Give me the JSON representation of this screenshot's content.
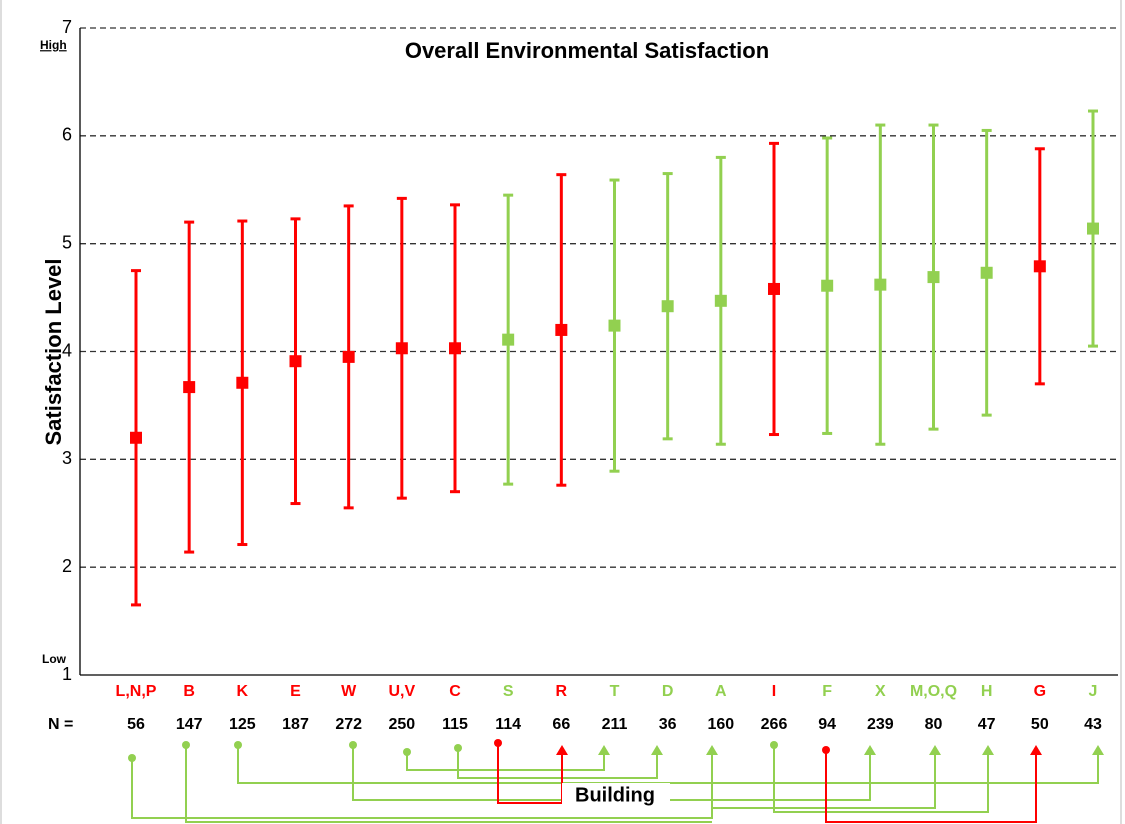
{
  "chart_data": {
    "type": "errorbar",
    "title": "Overall Environmental Satisfaction",
    "y_label": "Satisfaction Level",
    "annotations": {
      "high": "High",
      "low": "Low",
      "building": "Building"
    },
    "categories": [
      "L,N,P",
      "B",
      "K",
      "E",
      "W",
      "U,V",
      "C",
      "S",
      "R",
      "T",
      "D",
      "A",
      "I",
      "F",
      "X",
      "M,O,Q",
      "H",
      "G",
      "J"
    ],
    "values": [
      3.2,
      3.67,
      3.71,
      3.91,
      3.95,
      4.03,
      4.03,
      4.11,
      4.2,
      4.24,
      4.42,
      4.47,
      4.58,
      4.61,
      4.62,
      4.69,
      4.73,
      4.79,
      5.14
    ],
    "errors": [
      1.55,
      1.53,
      1.5,
      1.32,
      1.4,
      1.39,
      1.33,
      1.34,
      1.44,
      1.35,
      1.23,
      1.33,
      1.35,
      1.37,
      1.48,
      1.41,
      1.32,
      1.09,
      1.09
    ],
    "colors": [
      "#ff0000",
      "#ff0000",
      "#ff0000",
      "#ff0000",
      "#ff0000",
      "#ff0000",
      "#ff0000",
      "#92d050",
      "#ff0000",
      "#92d050",
      "#92d050",
      "#92d050",
      "#ff0000",
      "#92d050",
      "#92d050",
      "#92d050",
      "#92d050",
      "#ff0000",
      "#92d050"
    ],
    "n_label": "N =",
    "n_values": [
      56,
      147,
      125,
      187,
      272,
      250,
      115,
      114,
      66,
      211,
      36,
      160,
      266,
      94,
      239,
      80,
      47,
      50,
      43
    ],
    "ylim": [
      1,
      7
    ],
    "yticks": [
      1,
      2,
      3,
      4,
      5,
      6,
      7
    ],
    "grid": true
  }
}
